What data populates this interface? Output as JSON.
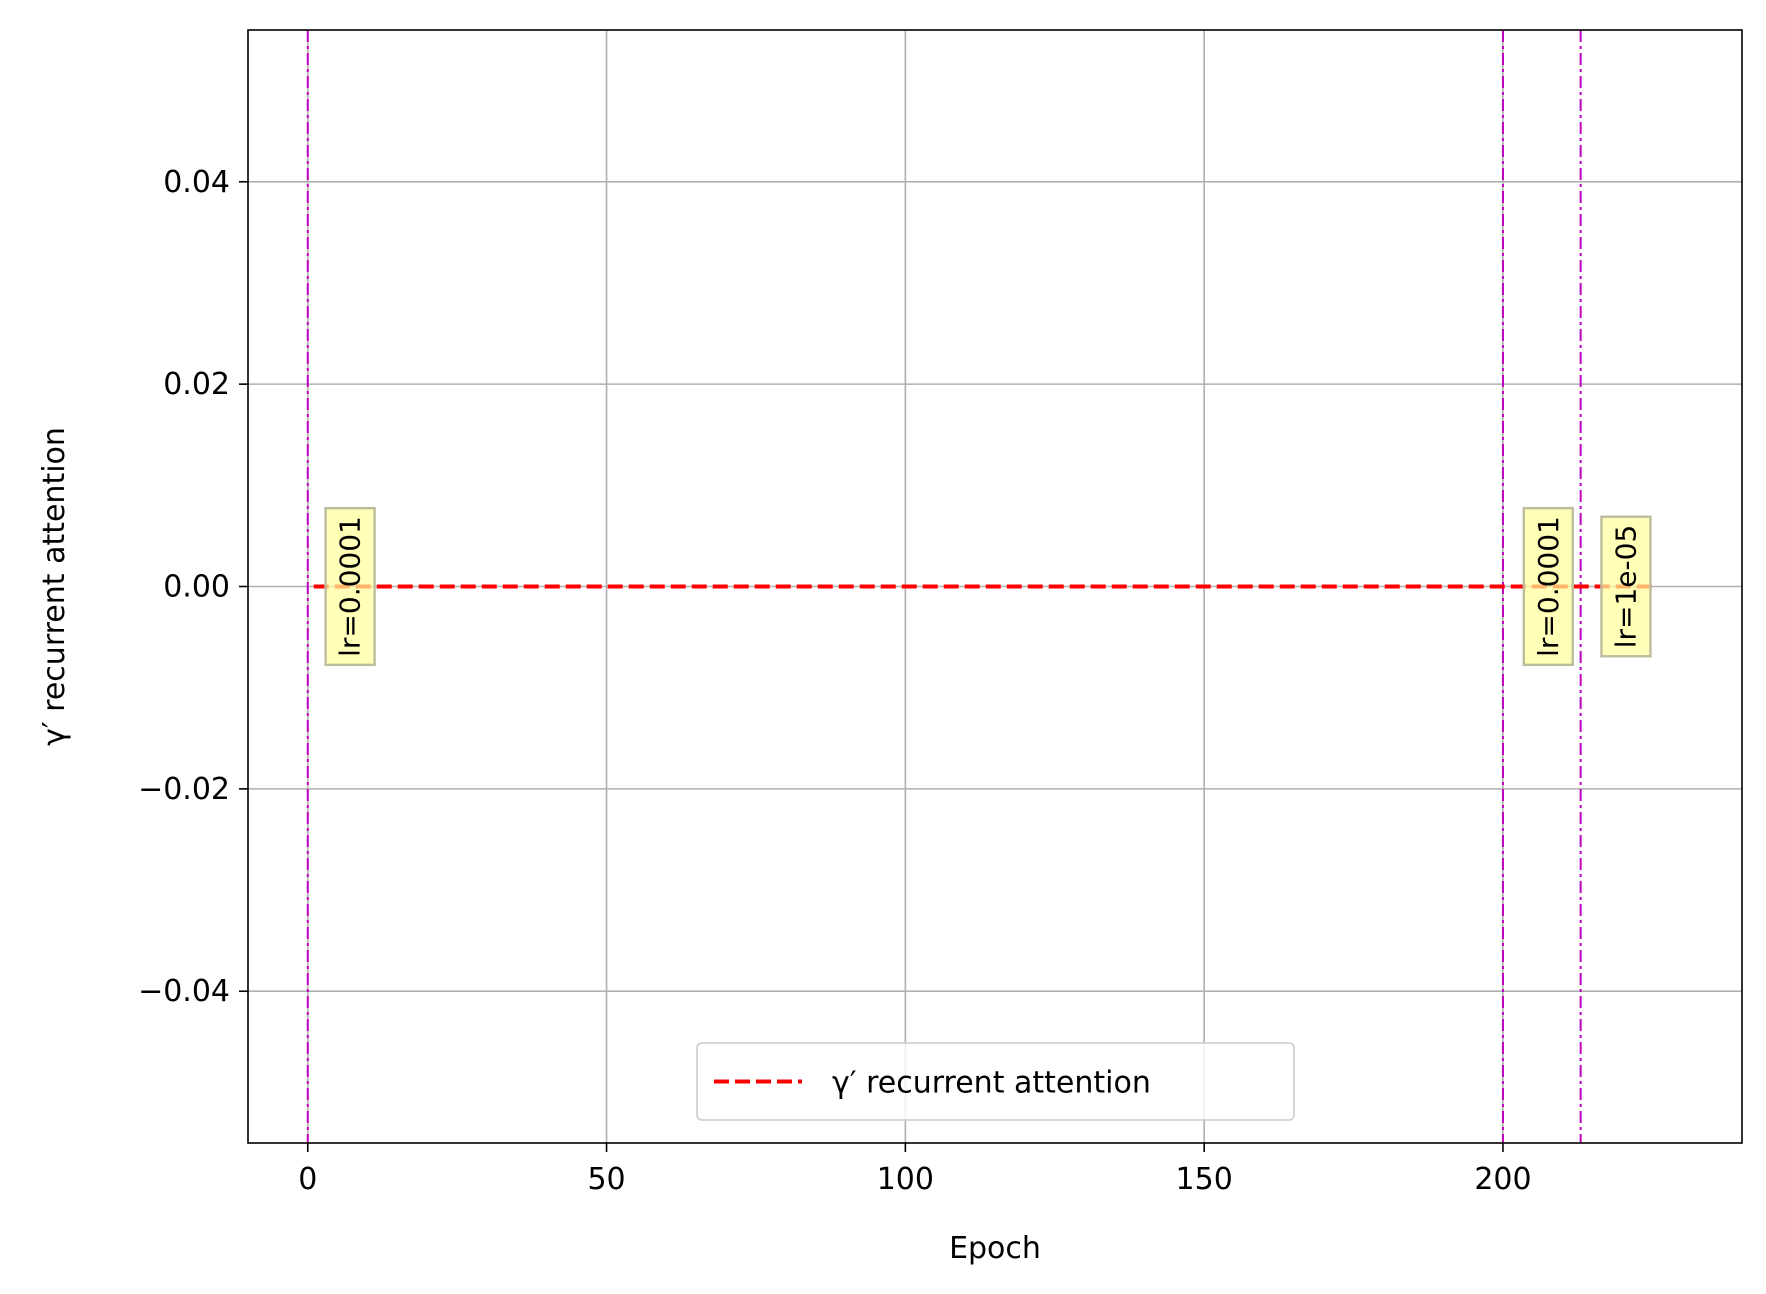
{
  "chart_data": {
    "type": "line",
    "xlabel": "Epoch",
    "ylabel": "γ′ recurrent attention",
    "xlim": [
      -10,
      240
    ],
    "ylim": [
      -0.055,
      0.055
    ],
    "xticks": [
      0,
      50,
      100,
      150,
      200
    ],
    "xtick_labels": [
      "0",
      "50",
      "100",
      "150",
      "200"
    ],
    "yticks": [
      -0.04,
      -0.02,
      0.0,
      0.02,
      0.04
    ],
    "ytick_labels": [
      "−0.04",
      "−0.02",
      "0.00",
      "0.02",
      "0.04"
    ],
    "grid": true,
    "series": [
      {
        "name": "γ′ recurrent attention",
        "color": "#ff0000",
        "style": "dashed",
        "x": [
          1,
          225
        ],
        "y": [
          0.0,
          0.0
        ]
      }
    ],
    "vlines": [
      {
        "x": 0,
        "color": "#bf00bf",
        "style": "dashdot"
      },
      {
        "x": 200,
        "color": "#bf00bf",
        "style": "dashdot"
      },
      {
        "x": 213,
        "color": "#bf00bf",
        "style": "dashdot"
      }
    ],
    "annotations": [
      {
        "text": "lr=0.0001",
        "x": 7,
        "y": 0.0
      },
      {
        "text": "lr=0.0001",
        "x": 207.5,
        "y": 0.0
      },
      {
        "text": "lr=1e-05",
        "x": 220.5,
        "y": 0.0
      }
    ],
    "legend": {
      "placement": "lower center",
      "entries": [
        "γ′ recurrent attention"
      ]
    }
  }
}
